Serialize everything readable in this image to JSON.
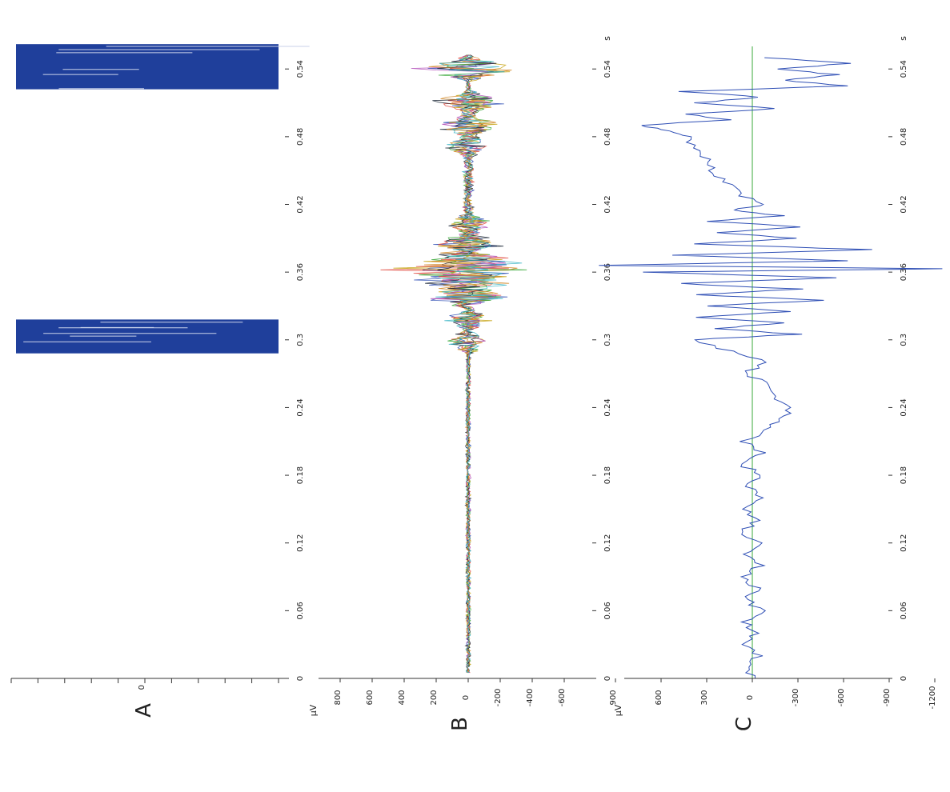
{
  "colors": {
    "axis": "#333333",
    "raster_fill": "#1f3f9b",
    "raster_gap": "#c9d2ea",
    "panel_c_trace": "#2f4fb5",
    "baseline": "#3aa83a",
    "series": [
      "#2f4fb5",
      "#e0453a",
      "#3aa83a",
      "#c9a71e",
      "#b04ab8",
      "#1f2a3a",
      "#d28a2a",
      "#3fb7c7"
    ]
  },
  "chart_data": [
    {
      "panel": "A",
      "type": "raster",
      "label": "A",
      "y_tick_label": "0",
      "x_unit": "",
      "xlim": [
        0,
        0.56
      ],
      "x_ticks": [
        "0",
        "0.06",
        "0.12",
        "0.18",
        "0.24",
        "0.3",
        "0.36",
        "0.42",
        "0.48",
        "0.54"
      ],
      "bursts": [
        {
          "start": 0.288,
          "end": 0.318
        },
        {
          "start": 0.522,
          "end": 0.562
        }
      ],
      "grid": false
    },
    {
      "panel": "B",
      "type": "line",
      "label": "B",
      "y_unit": "µV",
      "x_unit": "s",
      "xlim": [
        0,
        0.56
      ],
      "ylim": [
        -750,
        900
      ],
      "x_ticks": [
        "0",
        "0.06",
        "0.12",
        "0.18",
        "0.24",
        "0.3",
        "0.36",
        "0.42",
        "0.48",
        "0.54"
      ],
      "y_ticks": [
        "800",
        "600",
        "400",
        "200",
        "0",
        "-200",
        "-400",
        "-600"
      ],
      "y_tick_values": [
        800,
        600,
        400,
        200,
        0,
        -200,
        -400,
        -600
      ],
      "events": [
        {
          "t": 0.298,
          "amp": 220
        },
        {
          "t": 0.318,
          "amp": 180
        },
        {
          "t": 0.338,
          "amp": 320
        },
        {
          "t": 0.352,
          "amp": 420
        },
        {
          "t": 0.362,
          "amp": 600
        },
        {
          "t": 0.37,
          "amp": 460
        },
        {
          "t": 0.385,
          "amp": 300
        },
        {
          "t": 0.402,
          "amp": 200
        },
        {
          "t": 0.472,
          "amp": 220
        },
        {
          "t": 0.49,
          "amp": 260
        },
        {
          "t": 0.51,
          "amp": 300
        },
        {
          "t": 0.54,
          "amp": 420
        }
      ],
      "grid": false
    },
    {
      "panel": "C",
      "type": "line",
      "label": "C",
      "y_unit": "µV",
      "x_unit": "s",
      "xlim": [
        0,
        0.56
      ],
      "ylim": [
        -1350,
        1050
      ],
      "x_ticks": [
        "0",
        "0.06",
        "0.12",
        "0.18",
        "0.24",
        "0.3",
        "0.36",
        "0.42",
        "0.48",
        "0.54"
      ],
      "y_ticks": [
        "900",
        "600",
        "300",
        "0",
        "-300",
        "-600",
        "-900",
        "-1200"
      ],
      "y_tick_values": [
        900,
        600,
        300,
        0,
        -300,
        -600,
        -900,
        -1200
      ],
      "points": [
        [
          0,
          0
        ],
        [
          0.01,
          30
        ],
        [
          0.02,
          -40
        ],
        [
          0.03,
          60
        ],
        [
          0.04,
          -30
        ],
        [
          0.05,
          50
        ],
        [
          0.06,
          -60
        ],
        [
          0.07,
          40
        ],
        [
          0.08,
          -30
        ],
        [
          0.09,
          70
        ],
        [
          0.1,
          -50
        ],
        [
          0.11,
          40
        ],
        [
          0.12,
          -60
        ],
        [
          0.13,
          80
        ],
        [
          0.14,
          -40
        ],
        [
          0.15,
          60
        ],
        [
          0.16,
          -70
        ],
        [
          0.17,
          40
        ],
        [
          0.18,
          -50
        ],
        [
          0.19,
          70
        ],
        [
          0.2,
          -60
        ],
        [
          0.21,
          50
        ],
        [
          0.22,
          -100
        ],
        [
          0.23,
          -180
        ],
        [
          0.24,
          -260
        ],
        [
          0.25,
          -140
        ],
        [
          0.26,
          -120
        ],
        [
          0.27,
          60
        ],
        [
          0.28,
          -90
        ],
        [
          0.29,
          150
        ],
        [
          0.3,
          400
        ],
        [
          0.305,
          -300
        ],
        [
          0.31,
          250
        ],
        [
          0.315,
          -200
        ],
        [
          0.32,
          350
        ],
        [
          0.325,
          -250
        ],
        [
          0.33,
          300
        ],
        [
          0.335,
          -450
        ],
        [
          0.34,
          350
        ],
        [
          0.345,
          -300
        ],
        [
          0.35,
          500
        ],
        [
          0.355,
          -520
        ],
        [
          0.36,
          700
        ],
        [
          0.363,
          -1280
        ],
        [
          0.366,
          980
        ],
        [
          0.37,
          -620
        ],
        [
          0.375,
          520
        ],
        [
          0.38,
          -760
        ],
        [
          0.385,
          380
        ],
        [
          0.39,
          -300
        ],
        [
          0.395,
          250
        ],
        [
          0.4,
          -340
        ],
        [
          0.405,
          280
        ],
        [
          0.41,
          -180
        ],
        [
          0.415,
          150
        ],
        [
          0.42,
          -80
        ],
        [
          0.43,
          100
        ],
        [
          0.44,
          180
        ],
        [
          0.45,
          260
        ],
        [
          0.46,
          300
        ],
        [
          0.47,
          380
        ],
        [
          0.48,
          420
        ],
        [
          0.485,
          520
        ],
        [
          0.49,
          740
        ],
        [
          0.495,
          150
        ],
        [
          0.5,
          420
        ],
        [
          0.505,
          -150
        ],
        [
          0.51,
          360
        ],
        [
          0.515,
          -50
        ],
        [
          0.52,
          450
        ],
        [
          0.525,
          -620
        ],
        [
          0.53,
          -200
        ],
        [
          0.535,
          -560
        ],
        [
          0.54,
          -180
        ],
        [
          0.545,
          -620
        ],
        [
          0.55,
          -80
        ]
      ],
      "baseline": 0,
      "grid": false
    }
  ]
}
